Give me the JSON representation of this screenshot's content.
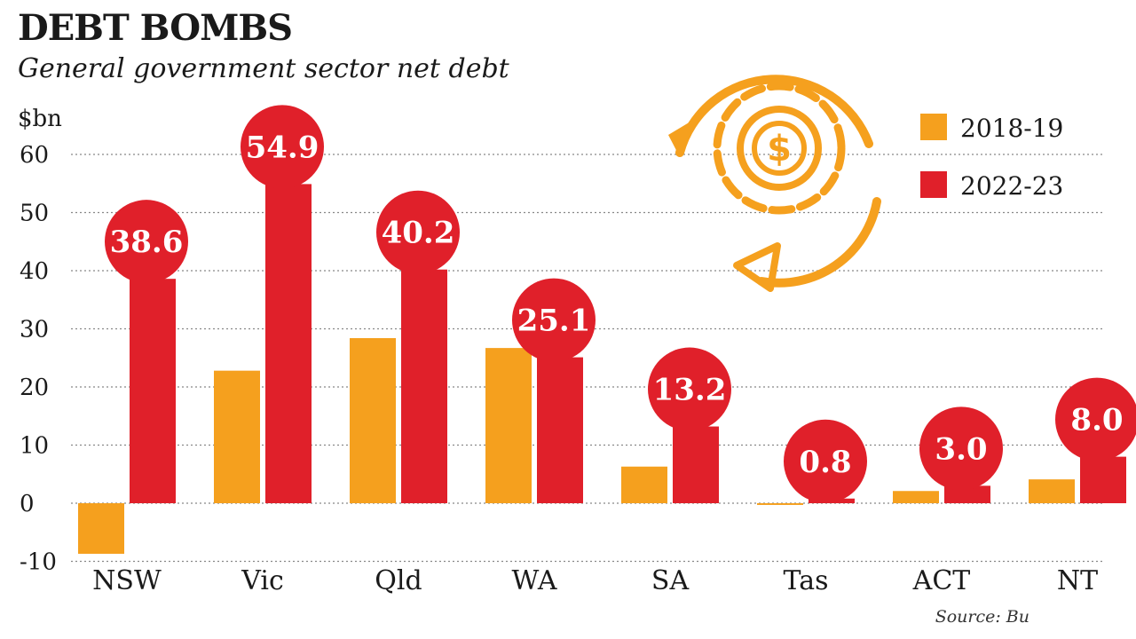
{
  "chart_data": {
    "type": "bar",
    "title": "DEBT BOMBS",
    "subtitle": "General government sector net debt",
    "ylabel": "$bn",
    "ylim": [
      -10,
      60
    ],
    "yticks": [
      60,
      50,
      40,
      30,
      20,
      10,
      0,
      -10
    ],
    "grid": true,
    "legend_position": "top-right",
    "categories": [
      "NSW",
      "Vic",
      "Qld",
      "WA",
      "SA",
      "Tas",
      "ACT",
      "NT"
    ],
    "series": [
      {
        "name": "2018-19",
        "color": "#f5a01e",
        "values": [
          -8.7,
          22.8,
          28.4,
          26.7,
          6.3,
          -0.3,
          2.1,
          4.1
        ]
      },
      {
        "name": "2022-23",
        "color": "#e0202a",
        "values": [
          38.6,
          54.9,
          40.2,
          25.1,
          13.2,
          0.8,
          3.0,
          8.0
        ],
        "labels": [
          "38.6",
          "54.9",
          "40.2",
          "25.1",
          "13.2",
          "0.8",
          "3.0",
          "8.0"
        ]
      }
    ],
    "source": "Source: Bu"
  },
  "icon": "money-gear-cycle-icon",
  "colors": {
    "bubble": "#e0202a",
    "icon": "#f5a01e",
    "grid": "#888888"
  }
}
